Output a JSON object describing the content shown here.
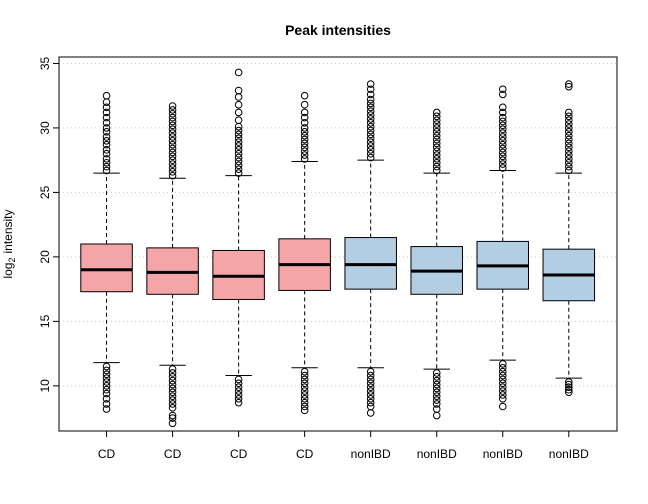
{
  "chart_data": {
    "type": "boxplot",
    "title": "Peak intensities",
    "ylabel_main": "log",
    "ylabel_sub": "2",
    "ylabel_rest": "intensity",
    "xlabel": "",
    "ylim": [
      6.5,
      35.5
    ],
    "yticks": [
      10,
      15,
      20,
      25,
      30,
      35
    ],
    "grid": "horizontal dotted",
    "colors": {
      "CD": "#f4a5a8",
      "nonIBD": "#b3cde3"
    },
    "categories": [
      "CD",
      "CD",
      "CD",
      "CD",
      "nonIBD",
      "nonIBD",
      "nonIBD",
      "nonIBD"
    ],
    "boxes": [
      {
        "label": "CD",
        "group": "CD",
        "whisker_low": 11.8,
        "q1": 17.3,
        "median": 19.0,
        "q3": 21.0,
        "whisker_high": 26.5,
        "outliers_high": [
          26.7,
          27.0,
          27.3,
          27.6,
          28.0,
          28.3,
          28.7,
          29.0,
          29.3,
          29.7,
          30.0,
          30.4,
          30.8,
          31.2,
          31.6,
          32.0,
          32.5
        ],
        "outliers_low": [
          11.5,
          11.2,
          10.9,
          10.6,
          10.3,
          10.0,
          9.7,
          9.4,
          9.0,
          8.6,
          8.2
        ]
      },
      {
        "label": "CD",
        "group": "CD",
        "whisker_low": 11.6,
        "q1": 17.1,
        "median": 18.8,
        "q3": 20.7,
        "whisker_high": 26.1,
        "outliers_high": [
          26.3,
          26.6,
          26.9,
          27.2,
          27.5,
          27.8,
          28.1,
          28.4,
          28.7,
          29.0,
          29.3,
          29.6,
          29.9,
          30.2,
          30.5,
          30.8,
          31.1,
          31.4,
          31.7
        ],
        "outliers_low": [
          11.3,
          11.0,
          10.7,
          10.4,
          10.1,
          9.8,
          9.5,
          9.2,
          8.9,
          8.6,
          8.3,
          7.7,
          7.5,
          7.1
        ]
      },
      {
        "label": "CD",
        "group": "CD",
        "whisker_low": 10.8,
        "q1": 16.7,
        "median": 18.5,
        "q3": 20.5,
        "whisker_high": 26.3,
        "outliers_high": [
          26.5,
          26.8,
          27.1,
          27.4,
          27.7,
          28.0,
          28.3,
          28.6,
          28.9,
          29.2,
          29.5,
          29.8,
          30.1,
          30.6,
          31.2,
          31.8,
          32.4,
          32.9,
          34.3
        ],
        "outliers_low": [
          10.5,
          10.2,
          9.9,
          9.6,
          9.3,
          9.0,
          8.7
        ]
      },
      {
        "label": "CD",
        "group": "CD",
        "whisker_low": 11.4,
        "q1": 17.4,
        "median": 19.4,
        "q3": 21.4,
        "whisker_high": 27.4,
        "outliers_high": [
          27.6,
          27.9,
          28.2,
          28.5,
          28.8,
          29.1,
          29.4,
          29.7,
          30.0,
          30.4,
          30.8,
          31.2,
          31.8,
          32.5
        ],
        "outliers_low": [
          11.1,
          10.8,
          10.5,
          10.2,
          9.9,
          9.6,
          9.3,
          9.0,
          8.7,
          8.4,
          8.1
        ]
      },
      {
        "label": "nonIBD",
        "group": "nonIBD",
        "whisker_low": 11.4,
        "q1": 17.5,
        "median": 19.4,
        "q3": 21.5,
        "whisker_high": 27.5,
        "outliers_high": [
          27.7,
          28.0,
          28.3,
          28.6,
          28.9,
          29.2,
          29.5,
          29.8,
          30.1,
          30.4,
          30.7,
          31.0,
          31.3,
          31.6,
          31.9,
          32.2,
          32.6,
          33.0,
          33.4
        ],
        "outliers_low": [
          11.1,
          10.8,
          10.5,
          10.2,
          9.9,
          9.6,
          9.3,
          9.0,
          8.7,
          8.4,
          7.9
        ]
      },
      {
        "label": "nonIBD",
        "group": "nonIBD",
        "whisker_low": 11.3,
        "q1": 17.1,
        "median": 18.9,
        "q3": 20.8,
        "whisker_high": 26.5,
        "outliers_high": [
          26.7,
          27.0,
          27.3,
          27.6,
          27.9,
          28.2,
          28.5,
          28.8,
          29.1,
          29.4,
          29.7,
          30.0,
          30.3,
          30.6,
          30.9,
          31.2
        ],
        "outliers_low": [
          11.0,
          10.7,
          10.4,
          10.1,
          9.8,
          9.5,
          9.2,
          8.9,
          8.6,
          8.2,
          7.7
        ]
      },
      {
        "label": "nonIBD",
        "group": "nonIBD",
        "whisker_low": 12.0,
        "q1": 17.5,
        "median": 19.3,
        "q3": 21.2,
        "whisker_high": 26.7,
        "outliers_high": [
          26.9,
          27.2,
          27.5,
          27.8,
          28.1,
          28.4,
          28.7,
          29.0,
          29.3,
          29.6,
          29.9,
          30.2,
          30.5,
          30.8,
          31.2,
          31.6,
          32.6,
          33.0
        ],
        "outliers_low": [
          11.7,
          11.4,
          11.1,
          10.8,
          10.5,
          10.2,
          9.9,
          9.6,
          9.3,
          9.0,
          8.4
        ]
      },
      {
        "label": "nonIBD",
        "group": "nonIBD",
        "whisker_low": 10.6,
        "q1": 16.6,
        "median": 18.6,
        "q3": 20.6,
        "whisker_high": 26.5,
        "outliers_high": [
          26.7,
          27.0,
          27.3,
          27.6,
          27.9,
          28.2,
          28.5,
          28.8,
          29.1,
          29.4,
          29.7,
          30.0,
          30.3,
          30.6,
          30.9,
          31.2,
          33.2,
          33.4
        ],
        "outliers_low": [
          10.3,
          10.1,
          9.9,
          9.7,
          9.5
        ]
      }
    ]
  }
}
